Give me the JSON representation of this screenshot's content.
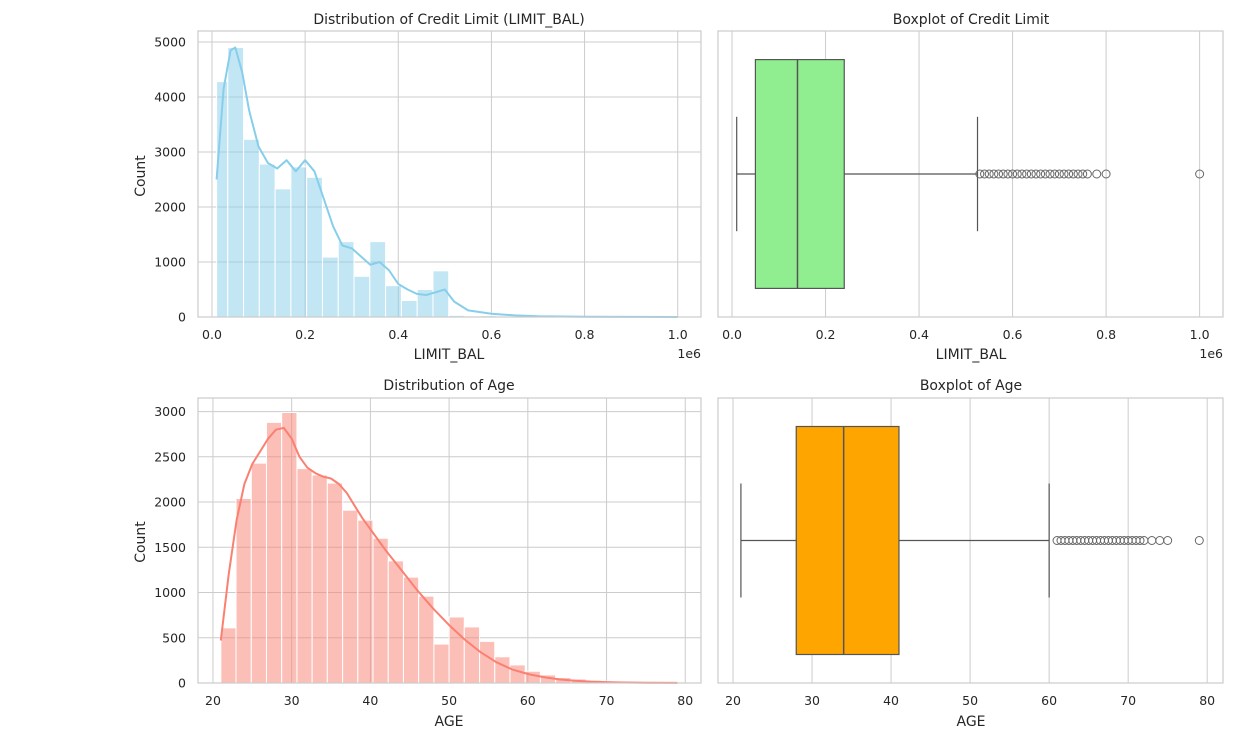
{
  "chart_data": [
    {
      "type": "histogram",
      "title": "Distribution of Credit Limit (LIMIT_BAL)",
      "xlabel": "LIMIT_BAL",
      "ylabel": "Count",
      "x_offset_label": "1e6",
      "xlim": [
        -0.03,
        1.05
      ],
      "ylim": [
        0,
        5200
      ],
      "xticks": [
        0.0,
        0.2,
        0.4,
        0.6,
        0.8,
        1.0
      ],
      "xtick_labels": [
        "0.0",
        "0.2",
        "0.4",
        "0.6",
        "0.8",
        "1.0"
      ],
      "yticks": [
        0,
        1000,
        2000,
        3000,
        4000,
        5000
      ],
      "ytick_labels": [
        "0",
        "1000",
        "2000",
        "3000",
        "4000",
        "5000"
      ],
      "bin_edges": [
        0.01,
        0.0339,
        0.0678,
        0.1017,
        0.1356,
        0.1694,
        0.2033,
        0.2372,
        0.2711,
        0.305,
        0.3389,
        0.3728,
        0.4067,
        0.4406,
        0.4745,
        0.5083,
        0.5422,
        0.5761,
        0.61,
        0.6439,
        0.6778,
        0.7117,
        0.7456,
        0.7794,
        0.8133,
        0.8472,
        0.8811,
        0.915,
        0.9489,
        0.9828,
        1.0
      ],
      "counts": [
        4280,
        4900,
        3230,
        2780,
        2330,
        2730,
        2540,
        1090,
        1370,
        740,
        1370,
        570,
        300,
        500,
        840,
        30,
        20,
        25,
        12,
        10,
        8,
        6,
        5,
        4,
        2,
        1,
        0,
        0,
        0,
        1
      ],
      "kde_x": [
        0.01,
        0.025,
        0.04,
        0.05,
        0.065,
        0.08,
        0.1,
        0.12,
        0.14,
        0.16,
        0.18,
        0.2,
        0.22,
        0.24,
        0.26,
        0.28,
        0.3,
        0.32,
        0.34,
        0.36,
        0.38,
        0.4,
        0.42,
        0.44,
        0.46,
        0.48,
        0.5,
        0.52,
        0.55,
        0.6,
        0.65,
        0.7,
        0.8,
        0.9,
        1.0
      ],
      "kde_y": [
        2500,
        4150,
        4850,
        4900,
        4450,
        3750,
        3100,
        2800,
        2700,
        2850,
        2650,
        2850,
        2650,
        2150,
        1650,
        1300,
        1250,
        1100,
        950,
        1000,
        850,
        600,
        500,
        420,
        400,
        450,
        500,
        280,
        120,
        60,
        30,
        15,
        5,
        2,
        0
      ],
      "bar_color": "#87ceeb",
      "line_color": "#87ceeb"
    },
    {
      "type": "boxplot",
      "title": "Boxplot of Credit Limit",
      "xlabel": "LIMIT_BAL",
      "x_offset_label": "1e6",
      "xlim": [
        -0.03,
        1.05
      ],
      "xticks": [
        0.0,
        0.2,
        0.4,
        0.6,
        0.8,
        1.0
      ],
      "xtick_labels": [
        "0.0",
        "0.2",
        "0.4",
        "0.6",
        "0.8",
        "1.0"
      ],
      "whisker_low": 0.01,
      "q1": 0.05,
      "median": 0.14,
      "q3": 0.24,
      "whisker_high": 0.525,
      "outliers": [
        0.53,
        0.54,
        0.55,
        0.56,
        0.57,
        0.58,
        0.59,
        0.6,
        0.61,
        0.62,
        0.63,
        0.64,
        0.65,
        0.66,
        0.67,
        0.68,
        0.69,
        0.7,
        0.71,
        0.72,
        0.73,
        0.74,
        0.75,
        0.76,
        0.78,
        0.8,
        1.0
      ],
      "box_color": "#90ee90"
    },
    {
      "type": "histogram",
      "title": "Distribution of Age",
      "xlabel": "AGE",
      "ylabel": "Count",
      "xlim": [
        18.1,
        82.0
      ],
      "ylim": [
        0,
        3150
      ],
      "xticks": [
        20,
        30,
        40,
        50,
        60,
        70,
        80
      ],
      "xtick_labels": [
        "20",
        "30",
        "40",
        "50",
        "60",
        "70",
        "80"
      ],
      "yticks": [
        0,
        500,
        1000,
        1500,
        2000,
        2500,
        3000
      ],
      "ytick_labels": [
        "0",
        "500",
        "1000",
        "1500",
        "2000",
        "2500",
        "3000"
      ],
      "bin_edges": [
        21,
        22.93,
        24.87,
        26.8,
        28.73,
        30.67,
        32.6,
        34.53,
        36.47,
        38.4,
        40.33,
        42.27,
        44.2,
        46.13,
        48.07,
        50,
        51.93,
        53.87,
        55.8,
        57.73,
        59.67,
        61.6,
        63.53,
        65.47,
        67.4,
        69.33,
        71.27,
        73.2,
        75.13,
        77.07,
        79
      ],
      "counts": [
        610,
        2040,
        2430,
        2880,
        2990,
        2370,
        2300,
        2210,
        1910,
        1800,
        1600,
        1350,
        1170,
        960,
        430,
        730,
        620,
        460,
        290,
        200,
        130,
        90,
        60,
        45,
        30,
        20,
        12,
        8,
        4,
        2
      ],
      "kde_x": [
        21,
        22,
        23,
        24,
        25,
        26,
        27,
        28,
        29,
        30,
        31,
        32,
        33,
        34,
        35,
        36,
        37,
        38,
        39,
        40,
        42,
        44,
        46,
        48,
        50,
        52,
        54,
        56,
        58,
        60,
        62,
        64,
        66,
        68,
        70,
        72,
        75,
        79
      ],
      "kde_y": [
        470,
        1200,
        1800,
        2200,
        2420,
        2560,
        2700,
        2800,
        2820,
        2700,
        2500,
        2380,
        2320,
        2280,
        2260,
        2200,
        2100,
        1960,
        1820,
        1700,
        1460,
        1240,
        1020,
        820,
        640,
        480,
        340,
        230,
        150,
        100,
        65,
        40,
        25,
        15,
        10,
        6,
        3,
        1
      ],
      "bar_color": "#fa8072",
      "line_color": "#fa8072"
    },
    {
      "type": "boxplot",
      "title": "Boxplot of Age",
      "xlabel": "AGE",
      "xlim": [
        18.1,
        82.0
      ],
      "xticks": [
        20,
        30,
        40,
        50,
        60,
        70,
        80
      ],
      "xtick_labels": [
        "20",
        "30",
        "40",
        "50",
        "60",
        "70",
        "80"
      ],
      "whisker_low": 21,
      "q1": 28,
      "median": 34,
      "q3": 41,
      "whisker_high": 60,
      "outliers": [
        61,
        61.5,
        62,
        62.5,
        63,
        63.5,
        64,
        64.5,
        65,
        65.5,
        66,
        66.5,
        67,
        67.5,
        68,
        68.5,
        69,
        69.5,
        70,
        70.5,
        71,
        71.5,
        72,
        73,
        74,
        75,
        79
      ],
      "box_color": "#ffa500"
    }
  ]
}
